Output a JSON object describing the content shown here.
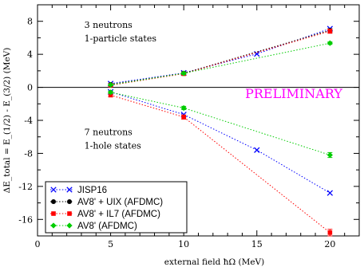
{
  "chart_data": {
    "type": "scatter",
    "title": "",
    "xlabel": "external field ħΩ  (MeV)",
    "ylabel": "ΔE_total = E_(1/2) - E_(3/2) (MeV)",
    "xlim": [
      0,
      22
    ],
    "ylim": [
      -18,
      10
    ],
    "xticks": [
      0,
      5,
      10,
      15,
      20
    ],
    "yticks": [
      8,
      4,
      0,
      -4,
      -8,
      -12,
      -16
    ],
    "grid": false,
    "legend_position": "bottom-left",
    "annotations": [
      {
        "lines": [
          "3 neutrons",
          "1-particle states"
        ],
        "x": 3.2,
        "y": 7.2
      },
      {
        "lines": [
          "7 neutrons",
          "1-hole states"
        ],
        "x": 3.2,
        "y": -5.8
      },
      {
        "text": "PRELIMINARY",
        "x": 14.2,
        "y": -1.3,
        "color": "#ff00ff"
      }
    ],
    "series": [
      {
        "name": "JISP16",
        "color": "#0000ff",
        "marker": "x",
        "x": [
          5,
          10,
          15,
          20
        ],
        "y": [
          0.45,
          1.75,
          4.05,
          7.1
        ],
        "err": [
          0,
          0,
          0,
          0
        ]
      },
      {
        "name": "JISP16",
        "color": "#0000ff",
        "marker": "x",
        "x": [
          5,
          10,
          15,
          20
        ],
        "y": [
          -0.55,
          -3.3,
          -7.6,
          -12.8
        ],
        "err": [
          0,
          0,
          0,
          0
        ]
      },
      {
        "name": "AV8' + UIX (AFDMC)",
        "color": "#000000",
        "marker": "circle",
        "x": [
          5,
          10,
          20
        ],
        "y": [
          0.35,
          1.7,
          6.9
        ],
        "err": [
          0.15,
          0.2,
          0.2
        ]
      },
      {
        "name": "AV8' + IL7 (AFDMC)",
        "color": "#ff0000",
        "marker": "square",
        "x": [
          5,
          10,
          20
        ],
        "y": [
          0.25,
          1.65,
          6.8
        ],
        "err": [
          0.15,
          0.2,
          0.25
        ]
      },
      {
        "name": "AV8' + IL7 (AFDMC)",
        "color": "#ff0000",
        "marker": "square",
        "x": [
          5,
          10,
          20
        ],
        "y": [
          -0.95,
          -3.6,
          -17.6
        ],
        "err": [
          0.2,
          0.25,
          0.4
        ]
      },
      {
        "name": "AV8' (AFDMC)",
        "color": "#00cc00",
        "marker": "diamond",
        "x": [
          5,
          10,
          20
        ],
        "y": [
          0.3,
          1.7,
          5.35
        ],
        "err": [
          0.1,
          0.15,
          0.15
        ]
      },
      {
        "name": "AV8' (AFDMC)",
        "color": "#00cc00",
        "marker": "diamond",
        "x": [
          5,
          10,
          20
        ],
        "y": [
          -0.6,
          -2.5,
          -8.2
        ],
        "err": [
          0.15,
          0.2,
          0.3
        ]
      }
    ],
    "legend": [
      {
        "label": "JISP16",
        "color": "#0000ff",
        "marker": "x"
      },
      {
        "label": "AV8' + UIX (AFDMC)",
        "color": "#000000",
        "marker": "circle"
      },
      {
        "label": "AV8' + IL7 (AFDMC)",
        "color": "#ff0000",
        "marker": "square"
      },
      {
        "label": "AV8' (AFDMC)",
        "color": "#00cc00",
        "marker": "diamond"
      }
    ]
  }
}
